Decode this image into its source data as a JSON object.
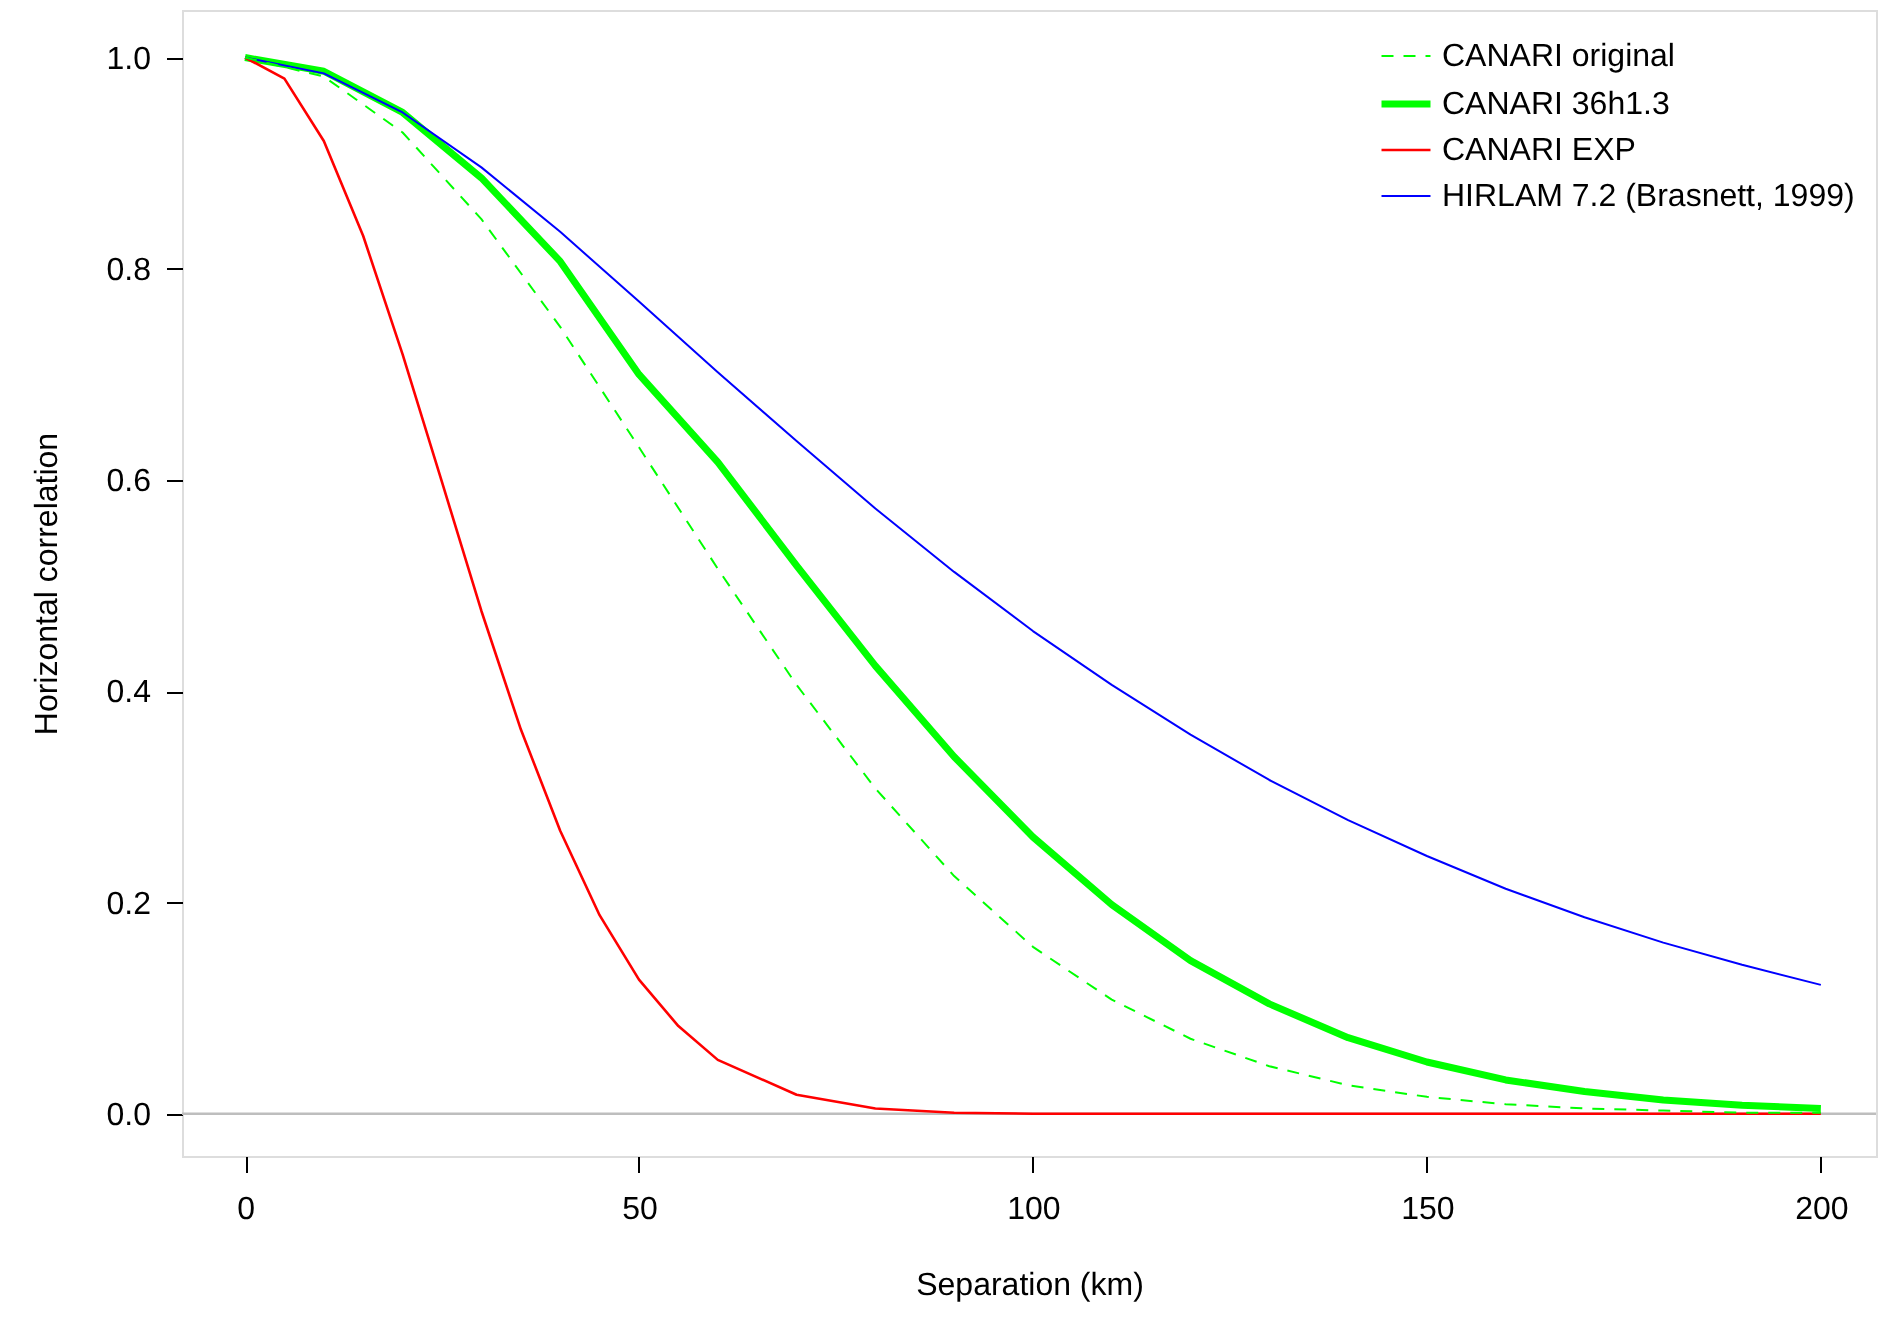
{
  "chart_data": {
    "type": "line",
    "xlabel": "Separation (km)",
    "ylabel": "Horizontal correlation",
    "xlim": [
      -8,
      207
    ],
    "ylim": [
      -0.04,
      1.045
    ],
    "xticks": [
      0,
      50,
      100,
      150,
      200
    ],
    "yticks": [
      {
        "value": 0,
        "label": "0.0"
      },
      0.2,
      0.4,
      0.6,
      0.8,
      {
        "value": 1,
        "label": "1.0"
      }
    ],
    "grid": false,
    "legend": "top right",
    "marker": "none",
    "ref_lines": [
      {
        "axis": "y",
        "value": 0,
        "color": "#bebebe"
      }
    ],
    "series": [
      {
        "name": "CANARI original",
        "color": "#00ff00",
        "line_style": "dashed",
        "x": [
          0,
          10,
          20,
          30,
          40,
          50,
          60,
          70,
          80,
          90,
          100,
          110,
          120,
          130,
          140,
          150,
          160,
          170,
          180,
          190,
          200
        ],
        "values": [
          1,
          0.982,
          0.929,
          0.847,
          0.745,
          0.631,
          0.516,
          0.406,
          0.308,
          0.225,
          0.158,
          0.108,
          0.071,
          0.045,
          0.027,
          0.016,
          0.009,
          0.005,
          0.003,
          0.001,
          0.001
        ]
      },
      {
        "name": "CANARI 36h1.3",
        "color": "#00ff00",
        "line_style": "solid",
        "x": [
          0,
          10,
          20,
          30,
          40,
          50,
          60,
          70,
          80,
          90,
          100,
          110,
          120,
          130,
          140,
          150,
          160,
          170,
          180,
          190,
          200
        ],
        "values": [
          1,
          0.987,
          0.948,
          0.886,
          0.807,
          0.7,
          0.617,
          0.519,
          0.424,
          0.338,
          0.262,
          0.198,
          0.145,
          0.104,
          0.072,
          0.049,
          0.032,
          0.021,
          0.013,
          0.008,
          0.005
        ]
      },
      {
        "name": "CANARI EXP",
        "color": "#ff0000",
        "line_style": "solid",
        "x": [
          0,
          5,
          10,
          15,
          20,
          25,
          30,
          35,
          40,
          45,
          50,
          55,
          60,
          70,
          80,
          90,
          100,
          120,
          150,
          200
        ],
        "values": [
          1,
          0.98,
          0.921,
          0.831,
          0.719,
          0.598,
          0.476,
          0.364,
          0.268,
          0.188,
          0.127,
          0.083,
          0.051,
          0.018,
          0.005,
          0.001,
          0,
          0,
          0,
          0
        ]
      },
      {
        "name": "HIRLAM 7.2 (Brasnett, 1999)",
        "color": "#0000ff",
        "line_style": "solid",
        "x": [
          0,
          10,
          20,
          30,
          40,
          50,
          60,
          70,
          80,
          90,
          100,
          110,
          120,
          130,
          140,
          150,
          160,
          170,
          180,
          190,
          200
        ],
        "values": [
          1,
          0.985,
          0.948,
          0.896,
          0.835,
          0.769,
          0.702,
          0.637,
          0.573,
          0.513,
          0.457,
          0.406,
          0.359,
          0.316,
          0.278,
          0.244,
          0.213,
          0.186,
          0.162,
          0.141,
          0.122
        ]
      }
    ]
  }
}
